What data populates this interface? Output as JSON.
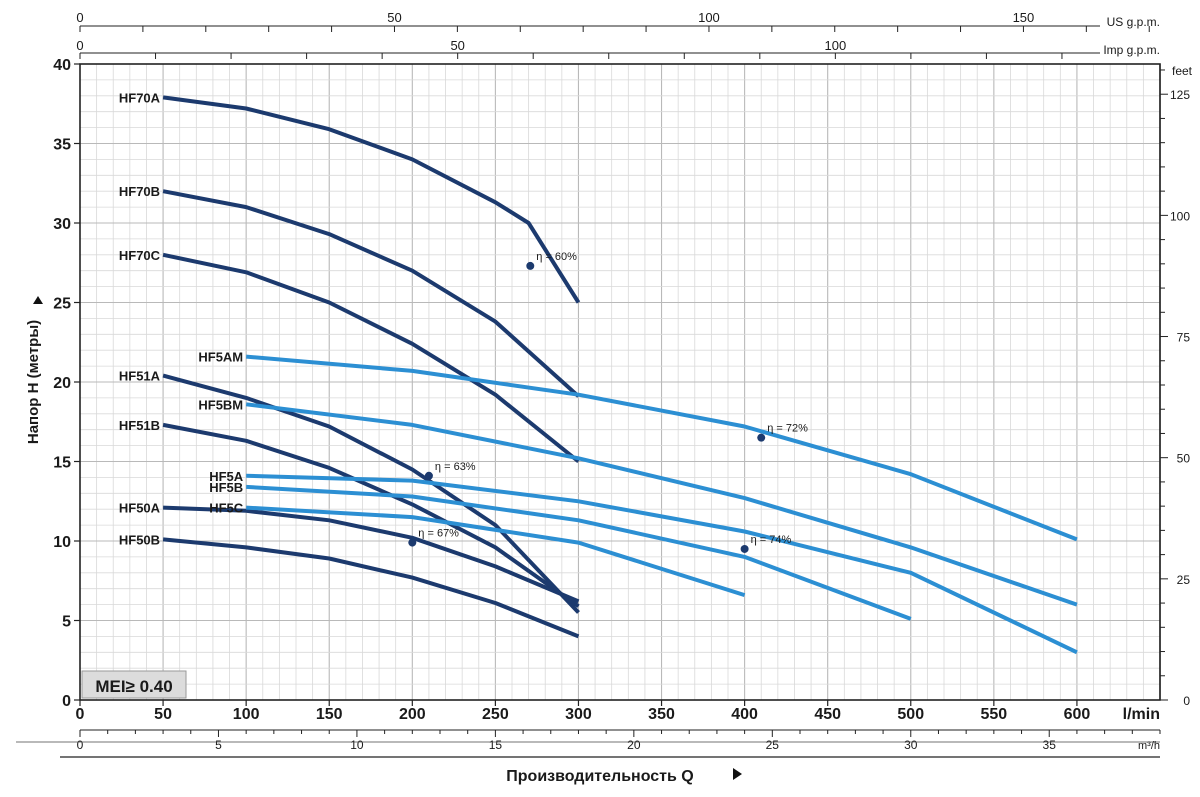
{
  "chart_data": {
    "type": "line",
    "ylabel": "Напор H (метры)",
    "xlabel": "Производительность Q",
    "x_unit": "l/min",
    "xlim": [
      0,
      650
    ],
    "ylim": [
      0,
      40
    ],
    "x_ticks": [
      0,
      50,
      100,
      150,
      200,
      250,
      300,
      350,
      400,
      450,
      500,
      550,
      600
    ],
    "y_ticks": [
      0,
      5,
      10,
      15,
      20,
      25,
      30,
      35,
      40
    ],
    "right_axis": {
      "unit": "feet",
      "ticks": [
        0,
        25,
        50,
        75,
        100,
        125
      ]
    },
    "top_axis_us": {
      "unit": "US g.p.m.",
      "ticks": [
        0,
        50,
        100,
        150
      ]
    },
    "top_axis_imp": {
      "unit": "Imp g.p.m.",
      "ticks": [
        0,
        50,
        100
      ]
    },
    "bottom_axis_m3h": {
      "unit": "m³/h",
      "ticks": [
        0,
        5,
        10,
        15,
        20,
        25,
        30,
        35
      ]
    },
    "grid": true,
    "badge": "MEI≥ 0.40",
    "colors": {
      "dark": "#1c3a6e",
      "light": "#2c8fd3",
      "grid": "#c8c8c8",
      "badge_bg": "#dcdcdc"
    },
    "series": [
      {
        "name": "HF70A",
        "color": "dark",
        "points": [
          [
            50,
            37.9
          ],
          [
            100,
            37.2
          ],
          [
            150,
            35.9
          ],
          [
            200,
            34.0
          ],
          [
            250,
            31.3
          ],
          [
            270,
            30.0
          ],
          [
            300,
            25.0
          ]
        ]
      },
      {
        "name": "HF70B",
        "color": "dark",
        "points": [
          [
            50,
            32.0
          ],
          [
            100,
            31.0
          ],
          [
            150,
            29.3
          ],
          [
            200,
            27.0
          ],
          [
            250,
            23.8
          ],
          [
            300,
            19.1
          ]
        ]
      },
      {
        "name": "HF70C",
        "color": "dark",
        "points": [
          [
            50,
            28.0
          ],
          [
            100,
            26.9
          ],
          [
            150,
            25.0
          ],
          [
            200,
            22.4
          ],
          [
            250,
            19.2
          ],
          [
            300,
            15.0
          ]
        ]
      },
      {
        "name": "HF51A",
        "color": "dark",
        "points": [
          [
            50,
            20.4
          ],
          [
            100,
            19.0
          ],
          [
            150,
            17.2
          ],
          [
            200,
            14.5
          ],
          [
            250,
            11.0
          ],
          [
            300,
            5.5
          ]
        ]
      },
      {
        "name": "HF51B",
        "color": "dark",
        "points": [
          [
            50,
            17.3
          ],
          [
            100,
            16.3
          ],
          [
            150,
            14.6
          ],
          [
            200,
            12.3
          ],
          [
            250,
            9.6
          ],
          [
            300,
            5.9
          ]
        ]
      },
      {
        "name": "HF50A",
        "color": "dark",
        "points": [
          [
            50,
            12.1
          ],
          [
            100,
            11.9
          ],
          [
            150,
            11.3
          ],
          [
            200,
            10.2
          ],
          [
            250,
            8.4
          ],
          [
            300,
            6.2
          ]
        ]
      },
      {
        "name": "HF50B",
        "color": "dark",
        "points": [
          [
            50,
            10.1
          ],
          [
            100,
            9.6
          ],
          [
            150,
            8.9
          ],
          [
            200,
            7.7
          ],
          [
            250,
            6.1
          ],
          [
            300,
            4.0
          ]
        ]
      },
      {
        "name": "HF5AM",
        "color": "light",
        "points": [
          [
            100,
            21.6
          ],
          [
            200,
            20.7
          ],
          [
            300,
            19.2
          ],
          [
            400,
            17.2
          ],
          [
            500,
            14.2
          ],
          [
            600,
            10.1
          ]
        ]
      },
      {
        "name": "HF5BM",
        "color": "light",
        "points": [
          [
            100,
            18.6
          ],
          [
            200,
            17.3
          ],
          [
            300,
            15.2
          ],
          [
            400,
            12.7
          ],
          [
            500,
            9.6
          ],
          [
            600,
            6.0
          ]
        ]
      },
      {
        "name": "HF5A",
        "color": "light",
        "points": [
          [
            100,
            14.1
          ],
          [
            200,
            13.8
          ],
          [
            300,
            12.5
          ],
          [
            400,
            10.6
          ],
          [
            500,
            8.0
          ],
          [
            600,
            3.0
          ]
        ]
      },
      {
        "name": "HF5B",
        "color": "light",
        "points": [
          [
            100,
            13.4
          ],
          [
            200,
            12.8
          ],
          [
            300,
            11.3
          ],
          [
            400,
            9.0
          ],
          [
            500,
            5.1
          ]
        ]
      },
      {
        "name": "HF5C",
        "color": "light",
        "points": [
          [
            100,
            12.1
          ],
          [
            200,
            11.5
          ],
          [
            300,
            9.9
          ],
          [
            400,
            6.6
          ]
        ]
      }
    ],
    "annotations": [
      {
        "text": "η = 60%",
        "x": 271,
        "y": 27.3
      },
      {
        "text": "η = 63%",
        "x": 210,
        "y": 14.1
      },
      {
        "text": "η = 67%",
        "x": 200,
        "y": 9.9
      },
      {
        "text": "η = 72%",
        "x": 410,
        "y": 16.5
      },
      {
        "text": "η = 74%",
        "x": 400,
        "y": 9.5
      }
    ]
  }
}
